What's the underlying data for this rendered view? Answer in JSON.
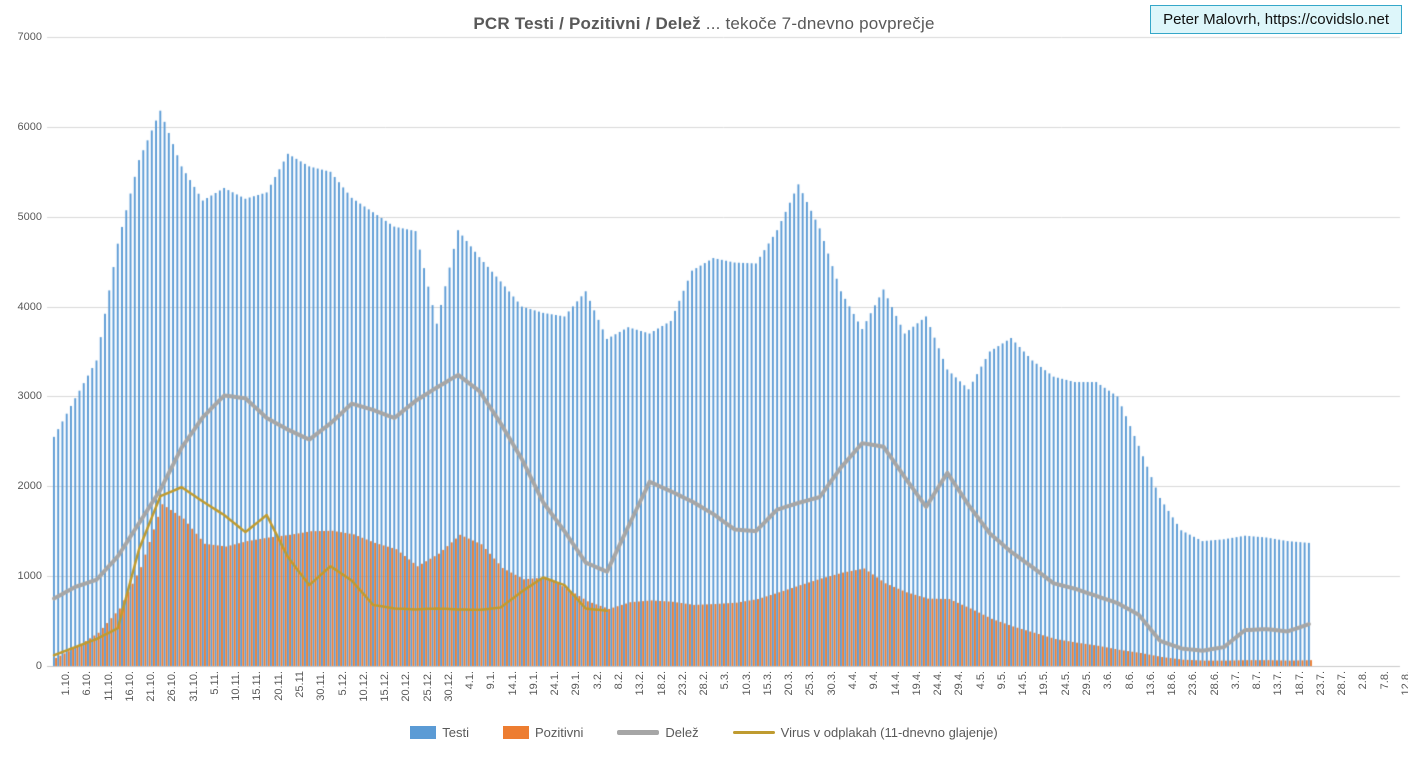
{
  "title": {
    "bold": "PCR Testi / Pozitivni / Delež",
    "rest": " ... tekoče 7-dnevno povprečje"
  },
  "attribution": {
    "text": "Peter Malovrh, https://covidslo.net"
  },
  "chart_data": {
    "type": "combo",
    "title": "PCR Testi / Pozitivni / Delež ... tekoče 7-dnevno povprečje",
    "ylim": [
      0,
      7000
    ],
    "ytick_step": 1000,
    "grid": "horizontal",
    "legend_position": "bottom",
    "x_sampling_note": "series values estimated at each labeled 5-day tick; daily bars interpolated between ticks; null = no data drawn",
    "x_labels": [
      "1.10.",
      "6.10.",
      "11.10.",
      "16.10.",
      "21.10.",
      "26.10.",
      "31.10.",
      "5.11.",
      "10.11.",
      "15.11.",
      "20.11.",
      "25.11",
      "30.11.",
      "5.12.",
      "10.12.",
      "15.12.",
      "20.12.",
      "25.12.",
      "30.12.",
      "4.1.",
      "9.1.",
      "14.1.",
      "19.1.",
      "24.1.",
      "29.1.",
      "3.2.",
      "8.2.",
      "13.2.",
      "18.2.",
      "23.2.",
      "28.2.",
      "5.3.",
      "10.3.",
      "15.3.",
      "20.3.",
      "25.3.",
      "30.3.",
      "4.4.",
      "9.4.",
      "14.4.",
      "19.4.",
      "24.4.",
      "29.4.",
      "4.5.",
      "9.5.",
      "14.5.",
      "19.5.",
      "24.5.",
      "29.5.",
      "3.6.",
      "8.6.",
      "13.6.",
      "18.6.",
      "23.6.",
      "28.6.",
      "3.7.",
      "8.7.",
      "13.7.",
      "18.7.",
      "23.7.",
      "28.7.",
      "2.8.",
      "7.8.",
      "12.8."
    ],
    "series": [
      {
        "name": "Testi",
        "type": "bar",
        "color": "#5B9BD5",
        "values": [
          2550,
          2980,
          3400,
          4700,
          5630,
          6180,
          5560,
          5180,
          5320,
          5200,
          5270,
          5700,
          5560,
          5500,
          5210,
          5050,
          4890,
          4840,
          3810,
          4850,
          4550,
          4280,
          4000,
          3930,
          3890,
          4170,
          3640,
          3770,
          3700,
          3840,
          4400,
          4540,
          4490,
          4480,
          4850,
          5360,
          4870,
          4170,
          3750,
          4190,
          3700,
          3890,
          3300,
          3080,
          3500,
          3650,
          3400,
          3220,
          3160,
          3160,
          3000,
          2450,
          1870,
          1510,
          1390,
          1410,
          1450,
          1430,
          1390,
          1370,
          null,
          null,
          null,
          null
        ]
      },
      {
        "name": "Pozitivni",
        "type": "bar",
        "color": "#ED7D31",
        "values": [
          90,
          215,
          370,
          640,
          1100,
          1800,
          1640,
          1360,
          1330,
          1390,
          1430,
          1460,
          1500,
          1505,
          1465,
          1370,
          1300,
          1110,
          1250,
          1460,
          1355,
          1090,
          965,
          985,
          865,
          720,
          635,
          710,
          730,
          715,
          680,
          690,
          705,
          745,
          820,
          900,
          975,
          1040,
          1085,
          920,
          820,
          750,
          745,
          640,
          525,
          440,
          370,
          300,
          260,
          225,
          180,
          145,
          100,
          70,
          60,
          60,
          65,
          65,
          60,
          65,
          null,
          null,
          null,
          null
        ]
      },
      {
        "name": "Delež",
        "type": "line",
        "color": "#A6A6A6",
        "line_width": 4,
        "values": [
          750,
          880,
          960,
          1220,
          1590,
          1960,
          2430,
          2770,
          3010,
          2980,
          2760,
          2630,
          2520,
          2700,
          2920,
          2850,
          2760,
          2950,
          3100,
          3240,
          3060,
          2700,
          2300,
          1820,
          1500,
          1150,
          1050,
          1550,
          2050,
          1945,
          1830,
          1690,
          1520,
          1500,
          1740,
          1815,
          1880,
          2210,
          2480,
          2440,
          2100,
          1770,
          2150,
          1790,
          1475,
          1270,
          1100,
          920,
          860,
          780,
          700,
          570,
          280,
          195,
          170,
          210,
          400,
          410,
          385,
          465,
          null,
          null,
          null,
          null
        ]
      },
      {
        "name": "Virus v odplakah (11-dnevno glajenje)",
        "type": "line",
        "color": "#BF9B30",
        "line_width": 2.5,
        "values": [
          120,
          210,
          300,
          420,
          1300,
          1890,
          1990,
          1830,
          1680,
          1490,
          1680,
          1210,
          900,
          1110,
          950,
          680,
          640,
          630,
          640,
          630,
          625,
          650,
          830,
          985,
          900,
          640,
          615,
          null,
          null,
          null,
          null,
          null,
          null,
          null,
          null,
          null,
          null,
          null,
          null,
          null,
          null,
          null,
          null,
          null,
          null,
          null,
          null,
          null,
          null,
          null,
          null,
          null,
          null,
          null,
          null,
          null,
          null,
          null,
          null,
          null,
          null,
          null,
          null,
          null
        ]
      }
    ]
  }
}
